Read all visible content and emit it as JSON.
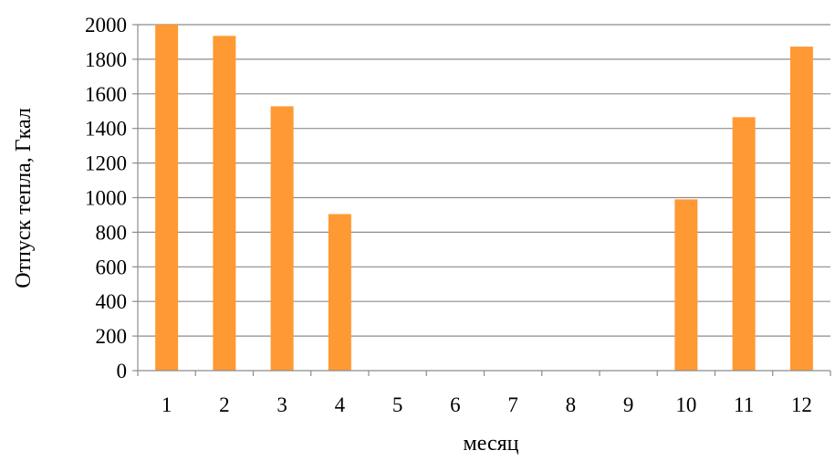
{
  "chart_data": {
    "type": "bar",
    "title": "",
    "xlabel": "месяц",
    "ylabel": "Отпуск тепла, Гкал",
    "categories": [
      "1",
      "2",
      "3",
      "4",
      "5",
      "6",
      "7",
      "8",
      "9",
      "10",
      "11",
      "12"
    ],
    "values": [
      2000,
      1935,
      1528,
      905,
      0,
      0,
      0,
      0,
      0,
      990,
      1465,
      1873
    ],
    "ylim": [
      0,
      2000
    ],
    "yticks": [
      "0",
      "200",
      "400",
      "600",
      "800",
      "1000",
      "1200",
      "1400",
      "1600",
      "1800",
      "2000"
    ],
    "grid": true,
    "legend": "none",
    "bar_color": "#FF9933",
    "grid_color": "#8C8C8C"
  }
}
